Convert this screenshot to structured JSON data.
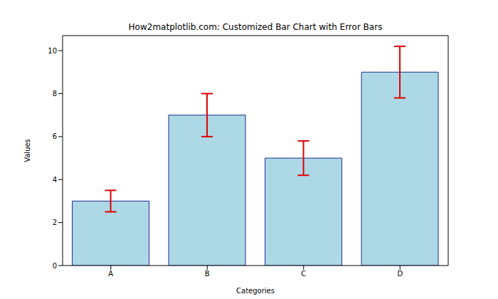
{
  "chart_data": {
    "type": "bar",
    "title": "How2matplotlib.com: Customized Bar Chart with Error Bars",
    "x_label": "Categories",
    "y_label": "Values",
    "categories": [
      "A",
      "B",
      "C",
      "D"
    ],
    "values": [
      3,
      7,
      5,
      9
    ],
    "errors": [
      0.5,
      1,
      0.8,
      1.2
    ],
    "color": "#add8e6",
    "ylim": [
      0,
      10.7
    ],
    "yticks": [
      0,
      2,
      4,
      6,
      8,
      10
    ],
    "grid": false
  }
}
